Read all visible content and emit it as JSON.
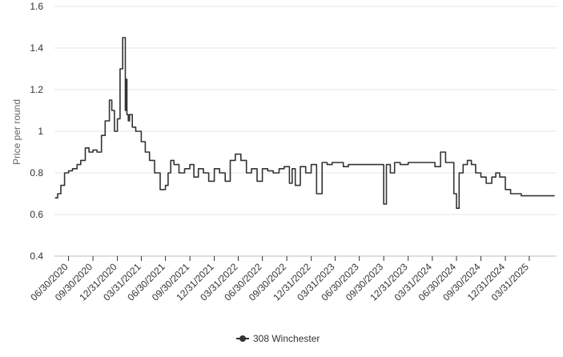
{
  "chart_data": {
    "type": "line",
    "title": "",
    "xlabel": "",
    "ylabel": "Price per round",
    "ylim": [
      0.4,
      1.6
    ],
    "yticks": [
      0.4,
      0.6,
      0.8,
      1,
      1.2,
      1.4,
      1.6
    ],
    "grid": true,
    "legend_position": "bottom-center",
    "x_tick_labels": [
      "06/30/2020",
      "09/30/2020",
      "12/31/2020",
      "03/31/2021",
      "06/30/2021",
      "09/30/2021",
      "12/31/2021",
      "03/31/2022",
      "06/30/2022",
      "09/30/2022",
      "12/31/2022",
      "03/31/2023",
      "06/30/2023",
      "09/30/2023",
      "12/31/2023",
      "03/31/2024",
      "06/30/2024",
      "09/30/2024",
      "12/31/2024",
      "03/31/2025"
    ],
    "x_range": [
      "2020-05-08",
      "2025-07-12"
    ],
    "series": [
      {
        "name": "308 Winchester",
        "color": "#333333",
        "x": [
          "2020-05-10",
          "2020-05-20",
          "2020-06-01",
          "2020-06-15",
          "2020-06-30",
          "2020-07-15",
          "2020-08-01",
          "2020-08-15",
          "2020-09-01",
          "2020-09-15",
          "2020-09-30",
          "2020-10-15",
          "2020-11-01",
          "2020-11-15",
          "2020-12-01",
          "2020-12-10",
          "2020-12-20",
          "2020-12-31",
          "2021-01-10",
          "2021-01-20",
          "2021-01-30",
          "2021-02-01",
          "2021-02-05",
          "2021-02-10",
          "2021-02-15",
          "2021-02-25",
          "2021-03-10",
          "2021-03-31",
          "2021-04-15",
          "2021-05-01",
          "2021-05-20",
          "2021-06-10",
          "2021-06-30",
          "2021-07-10",
          "2021-07-20",
          "2021-08-01",
          "2021-08-20",
          "2021-09-10",
          "2021-09-30",
          "2021-10-15",
          "2021-11-01",
          "2021-11-20",
          "2021-12-10",
          "2021-12-31",
          "2022-01-20",
          "2022-02-10",
          "2022-03-01",
          "2022-03-20",
          "2022-04-10",
          "2022-05-01",
          "2022-05-20",
          "2022-06-10",
          "2022-06-30",
          "2022-07-20",
          "2022-08-10",
          "2022-09-01",
          "2022-09-20",
          "2022-10-10",
          "2022-10-20",
          "2022-11-01",
          "2022-11-20",
          "2022-12-10",
          "2022-12-31",
          "2023-01-20",
          "2023-02-10",
          "2023-03-01",
          "2023-03-20",
          "2023-04-10",
          "2023-05-01",
          "2023-05-20",
          "2023-06-10",
          "2023-06-30",
          "2023-07-20",
          "2023-08-10",
          "2023-09-01",
          "2023-09-20",
          "2023-09-30",
          "2023-10-10",
          "2023-10-25",
          "2023-11-10",
          "2023-12-01",
          "2023-12-31",
          "2024-01-20",
          "2024-02-10",
          "2024-03-01",
          "2024-03-20",
          "2024-04-10",
          "2024-05-01",
          "2024-05-20",
          "2024-06-10",
          "2024-06-20",
          "2024-06-30",
          "2024-07-10",
          "2024-07-25",
          "2024-08-10",
          "2024-08-25",
          "2024-09-10",
          "2024-09-30",
          "2024-10-20",
          "2024-11-10",
          "2024-11-25",
          "2024-12-10",
          "2024-12-31",
          "2025-01-20",
          "2025-02-10",
          "2025-03-01",
          "2025-03-31",
          "2025-04-20",
          "2025-05-10",
          "2025-06-01",
          "2025-06-20",
          "2025-07-05"
        ],
        "y": [
          0.68,
          0.7,
          0.74,
          0.8,
          0.81,
          0.82,
          0.84,
          0.86,
          0.92,
          0.9,
          0.91,
          0.9,
          0.98,
          1.05,
          1.15,
          1.1,
          1.0,
          1.06,
          1.3,
          1.45,
          1.1,
          1.25,
          1.08,
          1.05,
          1.08,
          1.02,
          1.0,
          0.95,
          0.9,
          0.86,
          0.8,
          0.72,
          0.74,
          0.8,
          0.86,
          0.84,
          0.8,
          0.82,
          0.84,
          0.78,
          0.82,
          0.8,
          0.76,
          0.82,
          0.8,
          0.76,
          0.86,
          0.89,
          0.86,
          0.8,
          0.82,
          0.76,
          0.82,
          0.81,
          0.8,
          0.82,
          0.83,
          0.75,
          0.82,
          0.74,
          0.83,
          0.8,
          0.84,
          0.7,
          0.85,
          0.84,
          0.85,
          0.85,
          0.83,
          0.84,
          0.84,
          0.84,
          0.84,
          0.84,
          0.84,
          0.84,
          0.65,
          0.84,
          0.8,
          0.85,
          0.84,
          0.85,
          0.85,
          0.85,
          0.85,
          0.85,
          0.83,
          0.9,
          0.85,
          0.85,
          0.7,
          0.63,
          0.8,
          0.84,
          0.86,
          0.84,
          0.8,
          0.78,
          0.75,
          0.78,
          0.8,
          0.78,
          0.72,
          0.7,
          0.7,
          0.69,
          0.69,
          0.69,
          0.69,
          0.69,
          0.69,
          0.69
        ]
      }
    ]
  }
}
